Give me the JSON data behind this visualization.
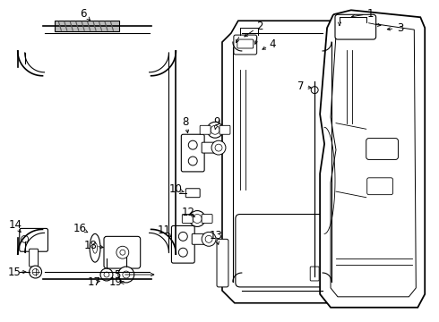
{
  "background_color": "#ffffff",
  "line_color": "#000000",
  "fig_width": 4.9,
  "fig_height": 3.6,
  "dpi": 100,
  "label_fontsize": 7.5
}
